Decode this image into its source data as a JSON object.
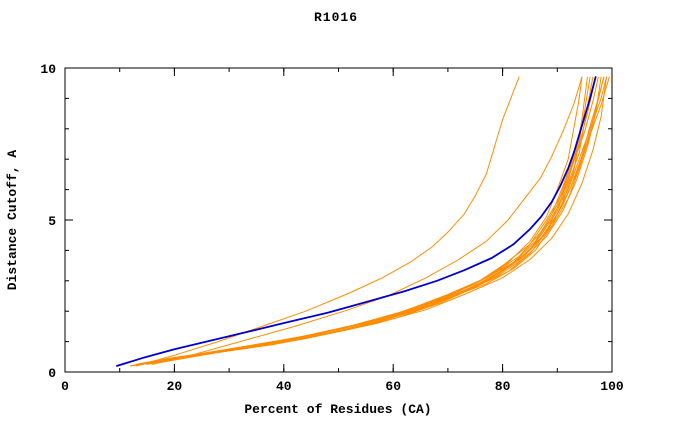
{
  "title": "R1016",
  "chart_data": {
    "type": "line",
    "title": "R1016",
    "xlabel": "Percent of Residues (CA)",
    "ylabel": "Distance Cutoff, A",
    "xlim": [
      0,
      100
    ],
    "ylim": [
      0,
      10
    ],
    "xticks": [
      0,
      20,
      40,
      60,
      80,
      100
    ],
    "yticks": [
      0,
      5,
      10
    ],
    "x_minor_step": 10,
    "y_minor_step": 1,
    "grid": false,
    "legend": "none",
    "colors": {
      "model_orange": "#ff8c00",
      "reference_blue": "#0000cc",
      "axis": "#000000",
      "background": "#ffffff"
    },
    "series": [
      {
        "name": "blue-reference-curve",
        "color": "#0000cc",
        "width": 1.8,
        "points": [
          [
            9.5,
            0.2
          ],
          [
            14,
            0.45
          ],
          [
            20,
            0.75
          ],
          [
            27,
            1.05
          ],
          [
            34,
            1.35
          ],
          [
            41,
            1.65
          ],
          [
            48,
            1.95
          ],
          [
            55,
            2.3
          ],
          [
            62,
            2.65
          ],
          [
            68,
            3.0
          ],
          [
            73,
            3.35
          ],
          [
            78,
            3.75
          ],
          [
            82,
            4.2
          ],
          [
            85,
            4.7
          ],
          [
            87,
            5.1
          ],
          [
            89,
            5.6
          ],
          [
            90.5,
            6.1
          ],
          [
            92,
            6.7
          ],
          [
            93,
            7.2
          ],
          [
            94,
            7.8
          ],
          [
            95,
            8.4
          ],
          [
            96,
            9.0
          ],
          [
            97,
            9.7
          ]
        ]
      },
      {
        "name": "orange-outlier-1",
        "color": "#ff8c00",
        "width": 1,
        "points": [
          [
            13,
            0.2
          ],
          [
            20,
            0.55
          ],
          [
            28,
            1.0
          ],
          [
            36,
            1.5
          ],
          [
            44,
            2.0
          ],
          [
            52,
            2.6
          ],
          [
            58,
            3.1
          ],
          [
            63,
            3.6
          ],
          [
            67,
            4.1
          ],
          [
            70,
            4.6
          ],
          [
            73,
            5.2
          ],
          [
            75,
            5.8
          ],
          [
            77,
            6.5
          ],
          [
            78,
            7.1
          ],
          [
            79,
            7.7
          ],
          [
            80,
            8.3
          ],
          [
            81.5,
            9.0
          ],
          [
            83,
            9.7
          ]
        ]
      },
      {
        "name": "orange-outlier-2",
        "color": "#ff8c00",
        "width": 1,
        "points": [
          [
            16,
            0.25
          ],
          [
            24,
            0.6
          ],
          [
            33,
            1.05
          ],
          [
            42,
            1.5
          ],
          [
            51,
            2.0
          ],
          [
            59,
            2.5
          ],
          [
            66,
            3.1
          ],
          [
            72,
            3.7
          ],
          [
            77,
            4.3
          ],
          [
            81,
            5.0
          ],
          [
            84,
            5.7
          ],
          [
            87,
            6.4
          ],
          [
            89,
            7.1
          ],
          [
            91,
            7.9
          ],
          [
            93,
            8.8
          ],
          [
            94.5,
            9.7
          ]
        ]
      },
      {
        "name": "orange-model-1",
        "color": "#ff8c00",
        "width": 1,
        "points": [
          [
            13,
            0.2
          ],
          [
            18,
            0.4
          ],
          [
            26,
            0.6
          ],
          [
            36,
            0.9
          ],
          [
            46,
            1.2
          ],
          [
            56,
            1.6
          ],
          [
            64,
            2.0
          ],
          [
            71,
            2.5
          ],
          [
            77,
            2.9
          ],
          [
            82,
            3.4
          ],
          [
            86,
            4.0
          ],
          [
            89,
            4.8
          ],
          [
            91,
            5.6
          ],
          [
            93,
            6.6
          ],
          [
            94,
            7.6
          ],
          [
            95,
            8.6
          ],
          [
            96,
            9.7
          ]
        ]
      },
      {
        "name": "orange-model-2",
        "color": "#ff8c00",
        "width": 1,
        "points": [
          [
            15,
            0.25
          ],
          [
            22,
            0.5
          ],
          [
            32,
            0.75
          ],
          [
            42,
            1.05
          ],
          [
            52,
            1.4
          ],
          [
            61,
            1.8
          ],
          [
            69,
            2.3
          ],
          [
            75,
            2.8
          ],
          [
            81,
            3.3
          ],
          [
            85,
            3.9
          ],
          [
            88,
            4.6
          ],
          [
            90,
            5.4
          ],
          [
            92,
            6.3
          ],
          [
            93.5,
            7.3
          ],
          [
            94.5,
            8.3
          ],
          [
            95.5,
            9.7
          ]
        ]
      },
      {
        "name": "orange-model-3",
        "color": "#ff8c00",
        "width": 1,
        "points": [
          [
            17,
            0.3
          ],
          [
            25,
            0.55
          ],
          [
            35,
            0.85
          ],
          [
            45,
            1.15
          ],
          [
            55,
            1.55
          ],
          [
            63,
            2.0
          ],
          [
            70,
            2.5
          ],
          [
            76,
            3.0
          ],
          [
            81,
            3.6
          ],
          [
            85,
            4.3
          ],
          [
            88,
            5.1
          ],
          [
            90,
            6.0
          ],
          [
            92,
            7.0
          ],
          [
            93,
            8.0
          ],
          [
            94,
            9.0
          ],
          [
            94.5,
            9.7
          ]
        ]
      },
      {
        "name": "orange-model-4",
        "color": "#ff8c00",
        "width": 1,
        "points": [
          [
            12,
            0.2
          ],
          [
            20,
            0.45
          ],
          [
            30,
            0.7
          ],
          [
            40,
            1.0
          ],
          [
            50,
            1.35
          ],
          [
            59,
            1.75
          ],
          [
            67,
            2.2
          ],
          [
            74,
            2.7
          ],
          [
            79,
            3.2
          ],
          [
            84,
            3.8
          ],
          [
            87,
            4.5
          ],
          [
            90,
            5.3
          ],
          [
            92,
            6.2
          ],
          [
            94,
            7.2
          ],
          [
            95,
            8.2
          ],
          [
            96.5,
            9.7
          ]
        ]
      },
      {
        "name": "orange-model-5",
        "color": "#ff8c00",
        "width": 1,
        "points": [
          [
            16,
            0.3
          ],
          [
            24,
            0.55
          ],
          [
            34,
            0.8
          ],
          [
            44,
            1.1
          ],
          [
            54,
            1.5
          ],
          [
            62,
            1.9
          ],
          [
            70,
            2.4
          ],
          [
            77,
            3.0
          ],
          [
            82,
            3.6
          ],
          [
            86,
            4.3
          ],
          [
            89,
            5.2
          ],
          [
            91,
            6.1
          ],
          [
            93,
            7.1
          ],
          [
            94.5,
            8.1
          ],
          [
            96,
            9.0
          ],
          [
            97,
            9.7
          ]
        ]
      },
      {
        "name": "orange-model-6",
        "color": "#ff8c00",
        "width": 1,
        "points": [
          [
            14,
            0.25
          ],
          [
            21,
            0.5
          ],
          [
            31,
            0.75
          ],
          [
            41,
            1.05
          ],
          [
            51,
            1.45
          ],
          [
            60,
            1.85
          ],
          [
            68,
            2.35
          ],
          [
            75,
            2.9
          ],
          [
            80,
            3.5
          ],
          [
            85,
            4.2
          ],
          [
            88,
            5.0
          ],
          [
            91,
            5.9
          ],
          [
            93,
            6.9
          ],
          [
            95,
            7.9
          ],
          [
            96.5,
            8.9
          ],
          [
            97.5,
            9.7
          ]
        ]
      },
      {
        "name": "orange-model-7",
        "color": "#ff8c00",
        "width": 1,
        "points": [
          [
            18,
            0.35
          ],
          [
            26,
            0.6
          ],
          [
            36,
            0.9
          ],
          [
            46,
            1.25
          ],
          [
            56,
            1.65
          ],
          [
            64,
            2.1
          ],
          [
            72,
            2.65
          ],
          [
            78,
            3.2
          ],
          [
            83,
            3.8
          ],
          [
            87,
            4.6
          ],
          [
            90,
            5.5
          ],
          [
            92,
            6.5
          ],
          [
            94,
            7.5
          ],
          [
            95.5,
            8.5
          ],
          [
            97,
            9.7
          ]
        ]
      },
      {
        "name": "orange-model-8",
        "color": "#ff8c00",
        "width": 1,
        "points": [
          [
            13,
            0.25
          ],
          [
            19,
            0.45
          ],
          [
            29,
            0.7
          ],
          [
            39,
            0.95
          ],
          [
            49,
            1.3
          ],
          [
            58,
            1.7
          ],
          [
            66,
            2.15
          ],
          [
            73,
            2.65
          ],
          [
            79,
            3.15
          ],
          [
            84,
            3.75
          ],
          [
            88,
            4.45
          ],
          [
            91,
            5.3
          ],
          [
            93.5,
            6.3
          ],
          [
            95.5,
            7.4
          ],
          [
            97,
            8.5
          ],
          [
            98,
            9.7
          ]
        ]
      },
      {
        "name": "orange-model-9",
        "color": "#ff8c00",
        "width": 1,
        "points": [
          [
            15,
            0.3
          ],
          [
            23,
            0.55
          ],
          [
            33,
            0.85
          ],
          [
            43,
            1.15
          ],
          [
            53,
            1.55
          ],
          [
            62,
            2.0
          ],
          [
            70,
            2.55
          ],
          [
            77,
            3.1
          ],
          [
            83,
            3.7
          ],
          [
            87,
            4.4
          ],
          [
            90,
            5.2
          ],
          [
            92.5,
            6.1
          ],
          [
            94.5,
            7.1
          ],
          [
            96,
            8.1
          ],
          [
            97.5,
            9.0
          ],
          [
            98.5,
            9.7
          ]
        ]
      },
      {
        "name": "orange-model-10",
        "color": "#ff8c00",
        "width": 1,
        "points": [
          [
            16,
            0.3
          ],
          [
            25,
            0.6
          ],
          [
            35,
            0.9
          ],
          [
            45,
            1.2
          ],
          [
            55,
            1.6
          ],
          [
            64,
            2.05
          ],
          [
            72,
            2.6
          ],
          [
            79,
            3.2
          ],
          [
            84,
            3.85
          ],
          [
            88,
            4.6
          ],
          [
            91,
            5.5
          ],
          [
            93.5,
            6.5
          ],
          [
            95.5,
            7.6
          ],
          [
            97,
            8.6
          ],
          [
            98.5,
            9.7
          ]
        ]
      },
      {
        "name": "orange-model-11",
        "color": "#ff8c00",
        "width": 1,
        "points": [
          [
            14,
            0.25
          ],
          [
            22,
            0.5
          ],
          [
            32,
            0.8
          ],
          [
            42,
            1.1
          ],
          [
            52,
            1.5
          ],
          [
            61,
            1.95
          ],
          [
            69,
            2.45
          ],
          [
            76,
            3.0
          ],
          [
            82,
            3.6
          ],
          [
            86,
            4.3
          ],
          [
            89,
            5.1
          ],
          [
            92,
            6.0
          ],
          [
            94,
            7.0
          ],
          [
            96,
            8.0
          ],
          [
            98,
            9.0
          ],
          [
            99,
            9.7
          ]
        ]
      },
      {
        "name": "orange-model-12",
        "color": "#ff8c00",
        "width": 1,
        "points": [
          [
            17,
            0.35
          ],
          [
            27,
            0.65
          ],
          [
            37,
            0.95
          ],
          [
            47,
            1.3
          ],
          [
            57,
            1.7
          ],
          [
            66,
            2.2
          ],
          [
            74,
            2.75
          ],
          [
            80,
            3.35
          ],
          [
            85,
            4.0
          ],
          [
            89,
            4.8
          ],
          [
            92,
            5.7
          ],
          [
            94,
            6.7
          ],
          [
            96,
            7.8
          ],
          [
            98,
            8.8
          ],
          [
            99.5,
            9.7
          ]
        ]
      },
      {
        "name": "orange-model-13",
        "color": "#ff8c00",
        "width": 1,
        "points": [
          [
            12,
            0.2
          ],
          [
            19,
            0.4
          ],
          [
            28,
            0.65
          ],
          [
            38,
            0.9
          ],
          [
            48,
            1.25
          ],
          [
            57,
            1.6
          ],
          [
            66,
            2.05
          ],
          [
            73,
            2.55
          ],
          [
            80,
            3.1
          ],
          [
            85,
            3.7
          ],
          [
            89,
            4.4
          ],
          [
            92,
            5.2
          ],
          [
            94.5,
            6.2
          ],
          [
            96.5,
            7.3
          ],
          [
            98,
            8.4
          ],
          [
            99,
            9.7
          ]
        ]
      }
    ]
  }
}
